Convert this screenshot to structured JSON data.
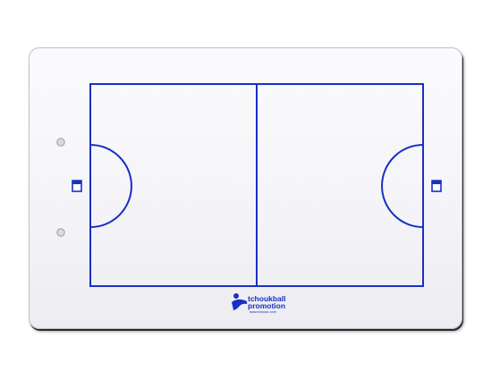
{
  "board": {
    "logo": {
      "line1": "tchoukball",
      "line2": "promotion",
      "line3": "www.tchouk.com"
    }
  },
  "colors": {
    "court_line": "#1a2fc4",
    "board_bg": "#f6f6f9",
    "hole": "#d9d9df"
  },
  "icons": {
    "left_frame": "square-frame-icon",
    "right_frame": "square-frame-icon",
    "logo": "player-figure-icon"
  }
}
